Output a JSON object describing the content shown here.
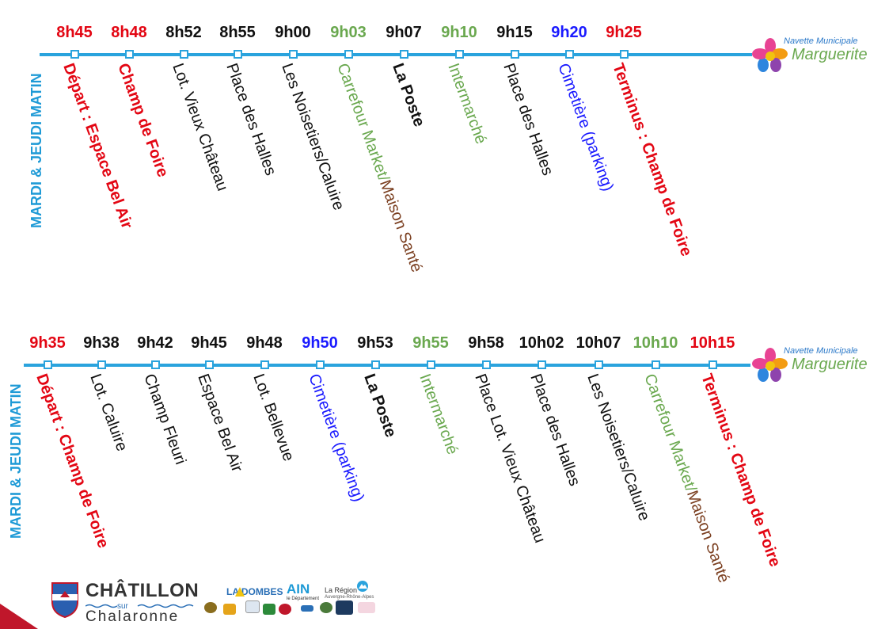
{
  "section1": {
    "side_title": "MARDI & JEUDI MATIN",
    "stops": [
      {
        "time": "8h45",
        "label": "Départ : Espace Bel Air",
        "time_color": "red",
        "label_color": "red",
        "bold": true
      },
      {
        "time": "8h48",
        "label": "Champ de Foire",
        "time_color": "red",
        "label_color": "red",
        "bold": true
      },
      {
        "time": "8h52",
        "label": "Lot. Vieux Château",
        "time_color": "black",
        "label_color": "black",
        "bold": false
      },
      {
        "time": "8h55",
        "label": "Place des Halles",
        "time_color": "black",
        "label_color": "black",
        "bold": false
      },
      {
        "time": "9h00",
        "label": "Les Noisetiers/Caluire",
        "time_color": "black",
        "label_color": "black",
        "bold": false
      },
      {
        "time": "9h03",
        "label_parts": [
          "Carrefour Market/",
          "Maison Santé"
        ],
        "part_colors": [
          "green",
          "brown"
        ],
        "time_color": "green",
        "bold": false
      },
      {
        "time": "9h07",
        "label": "La Poste",
        "time_color": "black",
        "label_color": "black",
        "bold": true
      },
      {
        "time": "9h10",
        "label": "Intermarché",
        "time_color": "green",
        "label_color": "green",
        "bold": false
      },
      {
        "time": "9h15",
        "label": "Place des Halles",
        "time_color": "black",
        "label_color": "black",
        "bold": false
      },
      {
        "time": "9h20",
        "label": "Cimetière (parking)",
        "time_color": "blue",
        "label_color": "blue",
        "bold": false
      },
      {
        "time": "9h25",
        "label": "Terminus : Champ de Foire",
        "time_color": "red",
        "label_color": "red",
        "bold": true
      }
    ]
  },
  "section2": {
    "side_title": "MARDI & JEUDI MATIN",
    "stops": [
      {
        "time": "9h35",
        "label": "Départ : Champ de Foire",
        "time_color": "red",
        "label_color": "red",
        "bold": true
      },
      {
        "time": "9h38",
        "label": "Lot. Caluire",
        "time_color": "black",
        "label_color": "black",
        "bold": false
      },
      {
        "time": "9h42",
        "label": "Champ Fleuri",
        "time_color": "black",
        "label_color": "black",
        "bold": false
      },
      {
        "time": "9h45",
        "label": "Espace Bel Air",
        "time_color": "black",
        "label_color": "black",
        "bold": false
      },
      {
        "time": "9h48",
        "label": "Lot. Bellevue",
        "time_color": "black",
        "label_color": "black",
        "bold": false
      },
      {
        "time": "9h50",
        "label": "Cimetière (parking)",
        "time_color": "blue",
        "label_color": "blue",
        "bold": false
      },
      {
        "time": "9h53",
        "label": "La Poste",
        "time_color": "black",
        "label_color": "black",
        "bold": true
      },
      {
        "time": "9h55",
        "label": "Intermarché",
        "time_color": "green",
        "label_color": "green",
        "bold": false
      },
      {
        "time": "9h58",
        "label": "Place Lot. Vieux Château",
        "time_color": "black",
        "label_color": "black",
        "bold": false
      },
      {
        "time": "10h02",
        "label": "Place des Halles",
        "time_color": "black",
        "label_color": "black",
        "bold": false
      },
      {
        "time": "10h07",
        "label": "Les Noisetiers/Caluire",
        "time_color": "black",
        "label_color": "black",
        "bold": false
      },
      {
        "time": "10h10",
        "label_parts": [
          "Carrefour Market/",
          "Maison Santé"
        ],
        "part_colors": [
          "green",
          "brown"
        ],
        "time_color": "green",
        "bold": false
      },
      {
        "time": "10h15",
        "label": "Terminus : Champ de Foire",
        "time_color": "red",
        "label_color": "red",
        "bold": true
      }
    ]
  },
  "shuttle_logo": {
    "line1": "Navette Municipale",
    "line2": "Marguerite"
  },
  "footer": {
    "city_name": "CHÂTILLON",
    "city_sur": "sur",
    "city_river": "Chalaronne",
    "partners": [
      "LA DOMBES",
      "AIN",
      "le Département",
      "La Région",
      "Auvergne-Rhône-Alpes"
    ]
  },
  "colors": {
    "line": "#2aa3dd",
    "title": "#1e9ad6",
    "red": "#e30613",
    "green": "#6aa84f",
    "blue": "#1a1aff",
    "brown": "#7b3f20"
  }
}
